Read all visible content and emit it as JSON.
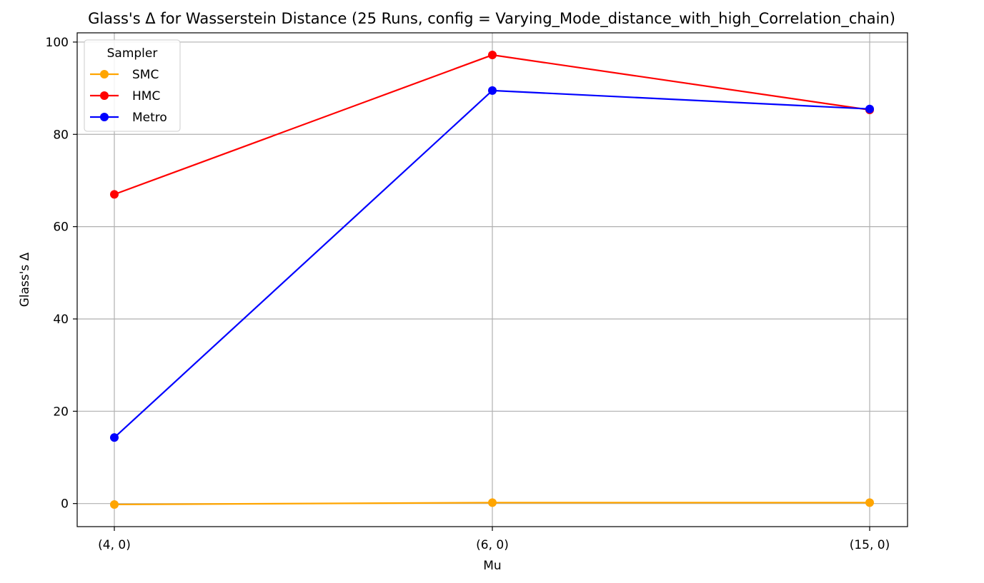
{
  "chart_data": {
    "type": "line",
    "title": "Glass's Δ for Wasserstein Distance (25 Runs, config = Varying_Mode_distance_with_high_Correlation_chain)",
    "xlabel": "Mu",
    "ylabel": "Glass's Δ",
    "categories": [
      "(4, 0)",
      "(6, 0)",
      "(15, 0)"
    ],
    "ylim": [
      -5,
      102
    ],
    "yticks": [
      0,
      20,
      40,
      60,
      80,
      100
    ],
    "grid": true,
    "legend": {
      "title": "Sampler",
      "placement": "top-left"
    },
    "series": [
      {
        "name": "SMC",
        "color": "#ffa500",
        "values": [
          -0.2,
          0.2,
          0.2
        ]
      },
      {
        "name": "HMC",
        "color": "#ff0000",
        "values": [
          67.0,
          97.2,
          85.3
        ]
      },
      {
        "name": "Metro",
        "color": "#0000ff",
        "values": [
          14.3,
          89.5,
          85.5
        ]
      }
    ]
  }
}
